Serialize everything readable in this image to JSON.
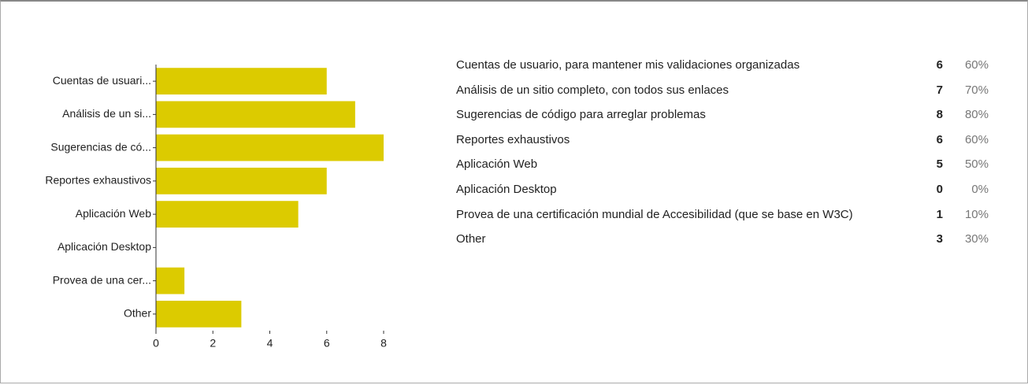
{
  "chart_data": {
    "type": "barh",
    "categories": [
      "Cuentas de usuari...",
      "Análisis de un si...",
      "Sugerencias de có...",
      "Reportes exhaustivos",
      "Aplicación Web",
      "Aplicación Desktop",
      "Provea de una cer...",
      "Other"
    ],
    "values": [
      6,
      7,
      8,
      6,
      5,
      0,
      1,
      3
    ],
    "color": "#dccb00",
    "xlim": [
      0,
      8
    ],
    "xticks": [
      0,
      2,
      4,
      6,
      8
    ],
    "grid": false
  },
  "table": {
    "rows": [
      [
        "Cuentas de usuario, para mantener mis validaciones organizadas",
        "6",
        "60%"
      ],
      [
        "Análisis de un sitio completo, con todos sus enlaces",
        "7",
        "70%"
      ],
      [
        "Sugerencias de código para arreglar problemas",
        "8",
        "80%"
      ],
      [
        "Reportes exhaustivos",
        "6",
        "60%"
      ],
      [
        "Aplicación Web",
        "5",
        "50%"
      ],
      [
        "Aplicación Desktop",
        "0",
        "0%"
      ],
      [
        "Provea de una certificación mundial de Accesibilidad (que se base en W3C)",
        "1",
        "10%"
      ],
      [
        "Other",
        "3",
        "30%"
      ]
    ]
  }
}
